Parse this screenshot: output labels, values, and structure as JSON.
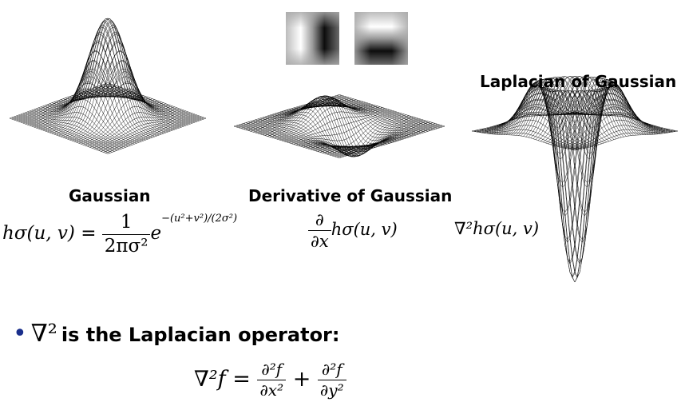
{
  "labels": {
    "gaussian": "Gaussian",
    "derivative": "Derivative of Gaussian",
    "log": "Laplacian of Gaussian"
  },
  "formulas": {
    "gaussian": {
      "lhs": "hσ(u, v) =",
      "frac_num": "1",
      "frac_den": "2πσ²",
      "base": "e",
      "exponent": "−(u²+v²)/(2σ²)"
    },
    "derivative": {
      "frac_num": "∂",
      "frac_den": "∂x",
      "rhs": "hσ(u, v)"
    },
    "log": "∇²hσ(u, v)"
  },
  "bullet": {
    "symbol": "∇²",
    "text": "is the Laplacian operator:"
  },
  "equation": {
    "lhs": "∇²f =",
    "term1_num": "∂²f",
    "term1_den": "∂x²",
    "plus": "+",
    "term2_num": "∂²f",
    "term2_den": "∂y²"
  },
  "icons": [
    "gaussian-derivative-x-kernel",
    "gaussian-derivative-y-kernel"
  ]
}
